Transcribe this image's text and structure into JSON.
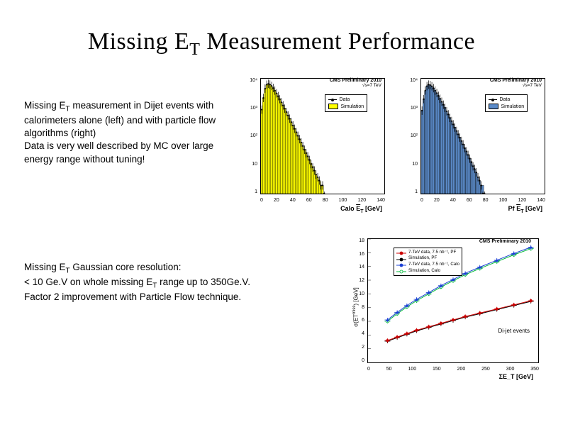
{
  "title_pre": "Missing E",
  "title_sub": "T",
  "title_post": " Measurement Performance",
  "desc1_lines": [
    "Missing E_T measurement in Dijet events with calorimeters alone (left) and with particle flow algorithms (right)",
    "Data is very well described by MC over large energy range without tuning!"
  ],
  "desc2_lines": [
    "Missing E_T Gaussian core resolution:",
    "< 10 Ge.V on whole missing E_T range up to 350Ge.V.",
    "Factor 2 improvement with Particle Flow technique."
  ],
  "chart_top_common": {
    "header_a": "CMS Preliminary 2010",
    "header_b": "√s=7 TeV",
    "ylabel": "Number of Events / 2 Ge.V",
    "legend_data": "Data",
    "legend_sim": "Simulation",
    "x_ticks": [
      "0",
      "20",
      "40",
      "60",
      "80",
      "100",
      "120",
      "140"
    ],
    "y_ticks_log": [
      "10⁴",
      "10³",
      "10²",
      "10",
      "1"
    ],
    "xmax": 150,
    "ylog_min": 0,
    "ylog_max": 4
  },
  "chart_a": {
    "xlabel": "Calo E_T [GeV]",
    "fill_color": "#ffff00",
    "hist": [
      [
        2,
        1200
      ],
      [
        4,
        3200
      ],
      [
        6,
        6800
      ],
      [
        8,
        9500
      ],
      [
        10,
        10400
      ],
      [
        12,
        9800
      ],
      [
        14,
        8700
      ],
      [
        16,
        7300
      ],
      [
        18,
        5900
      ],
      [
        20,
        4700
      ],
      [
        22,
        3700
      ],
      [
        24,
        2900
      ],
      [
        26,
        2200
      ],
      [
        28,
        1700
      ],
      [
        30,
        1300
      ],
      [
        32,
        980
      ],
      [
        34,
        740
      ],
      [
        36,
        560
      ],
      [
        38,
        420
      ],
      [
        40,
        320
      ],
      [
        42,
        240
      ],
      [
        44,
        180
      ],
      [
        46,
        135
      ],
      [
        48,
        100
      ],
      [
        50,
        76
      ],
      [
        52,
        57
      ],
      [
        54,
        42
      ],
      [
        56,
        32
      ],
      [
        58,
        24
      ],
      [
        60,
        18
      ],
      [
        62,
        13
      ],
      [
        64,
        10
      ],
      [
        66,
        7
      ],
      [
        68,
        5
      ],
      [
        70,
        4
      ],
      [
        72,
        3
      ],
      [
        74,
        2
      ],
      [
        76,
        2
      ],
      [
        78,
        1
      ],
      [
        94,
        1
      ],
      [
        102,
        1
      ]
    ],
    "data_pts": [
      [
        2,
        1180
      ],
      [
        4,
        3150
      ],
      [
        6,
        6900
      ],
      [
        8,
        9600
      ],
      [
        10,
        10300
      ],
      [
        12,
        9700
      ],
      [
        14,
        8650
      ],
      [
        16,
        7250
      ],
      [
        18,
        5850
      ],
      [
        20,
        4650
      ],
      [
        22,
        3650
      ],
      [
        24,
        2850
      ],
      [
        26,
        2180
      ],
      [
        28,
        1680
      ],
      [
        30,
        1280
      ],
      [
        32,
        960
      ],
      [
        34,
        720
      ],
      [
        36,
        550
      ],
      [
        38,
        410
      ],
      [
        40,
        310
      ],
      [
        42,
        235
      ],
      [
        44,
        175
      ],
      [
        46,
        130
      ],
      [
        48,
        98
      ],
      [
        50,
        74
      ],
      [
        52,
        55
      ],
      [
        54,
        40
      ],
      [
        56,
        30
      ],
      [
        58,
        23
      ],
      [
        60,
        17
      ],
      [
        62,
        12
      ],
      [
        64,
        9
      ],
      [
        66,
        7
      ],
      [
        68,
        5
      ],
      [
        70,
        4
      ],
      [
        72,
        3
      ],
      [
        74,
        2
      ],
      [
        76,
        2
      ],
      [
        78,
        1
      ]
    ]
  },
  "chart_b": {
    "xlabel": "Pf E_T [GeV]",
    "fill_color": "#5b8bc9",
    "hist": [
      [
        2,
        1100
      ],
      [
        4,
        2900
      ],
      [
        6,
        5800
      ],
      [
        8,
        8400
      ],
      [
        10,
        9700
      ],
      [
        12,
        9400
      ],
      [
        14,
        8500
      ],
      [
        16,
        7200
      ],
      [
        18,
        5900
      ],
      [
        20,
        4800
      ],
      [
        22,
        3800
      ],
      [
        24,
        3000
      ],
      [
        26,
        2300
      ],
      [
        28,
        1800
      ],
      [
        30,
        1400
      ],
      [
        32,
        1050
      ],
      [
        34,
        800
      ],
      [
        36,
        600
      ],
      [
        38,
        460
      ],
      [
        40,
        350
      ],
      [
        42,
        265
      ],
      [
        44,
        200
      ],
      [
        46,
        150
      ],
      [
        48,
        115
      ],
      [
        50,
        86
      ],
      [
        52,
        65
      ],
      [
        54,
        48
      ],
      [
        56,
        36
      ],
      [
        58,
        27
      ],
      [
        60,
        20
      ],
      [
        62,
        15
      ],
      [
        64,
        11
      ],
      [
        66,
        8
      ],
      [
        68,
        6
      ],
      [
        70,
        4
      ],
      [
        72,
        3
      ],
      [
        74,
        2
      ],
      [
        76,
        2
      ],
      [
        78,
        1
      ],
      [
        80,
        1
      ]
    ],
    "data_pts": [
      [
        2,
        1080
      ],
      [
        4,
        2850
      ],
      [
        6,
        5900
      ],
      [
        8,
        8500
      ],
      [
        10,
        9650
      ],
      [
        12,
        9300
      ],
      [
        14,
        8400
      ],
      [
        16,
        7150
      ],
      [
        18,
        5850
      ],
      [
        20,
        4750
      ],
      [
        22,
        3750
      ],
      [
        24,
        2950
      ],
      [
        26,
        2280
      ],
      [
        28,
        1780
      ],
      [
        30,
        1380
      ],
      [
        32,
        1030
      ],
      [
        34,
        790
      ],
      [
        36,
        590
      ],
      [
        38,
        450
      ],
      [
        40,
        340
      ],
      [
        42,
        260
      ],
      [
        44,
        195
      ],
      [
        46,
        148
      ],
      [
        48,
        112
      ],
      [
        50,
        84
      ],
      [
        52,
        63
      ],
      [
        54,
        46
      ],
      [
        56,
        35
      ],
      [
        58,
        26
      ],
      [
        60,
        19
      ],
      [
        62,
        14
      ],
      [
        64,
        10
      ],
      [
        66,
        8
      ],
      [
        68,
        6
      ],
      [
        70,
        4
      ],
      [
        72,
        3
      ],
      [
        74,
        2
      ],
      [
        76,
        1
      ],
      [
        78,
        1
      ]
    ]
  },
  "chart_c": {
    "header_a": "CMS Preliminary 2010",
    "ylabel": "σ(E_T^miss) [GeV]",
    "xlabel": "ΣE_T [GeV]",
    "x_ticks": [
      "0",
      "50",
      "100",
      "150",
      "200",
      "250",
      "300",
      "350"
    ],
    "y_ticks": [
      "18",
      "16",
      "14",
      "12",
      "10",
      "8",
      "6",
      "4",
      "2",
      "0"
    ],
    "ymax": 18,
    "xmax": 350,
    "annotation": "Di-jet events",
    "legend": [
      {
        "label": "7-TeV data, 7.5 nb⁻¹, PF",
        "color": "#cc0000",
        "marker": "circle"
      },
      {
        "label": "Simulation, PF",
        "color": "#000000",
        "marker": "star"
      },
      {
        "label": "7-TeV data, 7.5 nb⁻¹, Calo",
        "color": "#1a3fd6",
        "marker": "triangle"
      },
      {
        "label": "Simulation, Calo",
        "color": "#00b838",
        "marker": "opencircle"
      }
    ],
    "series_pf_data": {
      "color": "#cc0000",
      "pts": [
        [
          40,
          3.2
        ],
        [
          60,
          3.7
        ],
        [
          80,
          4.2
        ],
        [
          100,
          4.7
        ],
        [
          125,
          5.2
        ],
        [
          150,
          5.7
        ],
        [
          175,
          6.2
        ],
        [
          200,
          6.7
        ],
        [
          230,
          7.2
        ],
        [
          265,
          7.8
        ],
        [
          300,
          8.4
        ],
        [
          335,
          9.0
        ]
      ]
    },
    "series_pf_sim": {
      "color": "#000000",
      "pts": [
        [
          40,
          3.1
        ],
        [
          60,
          3.6
        ],
        [
          80,
          4.1
        ],
        [
          100,
          4.6
        ],
        [
          125,
          5.1
        ],
        [
          150,
          5.6
        ],
        [
          175,
          6.1
        ],
        [
          200,
          6.6
        ],
        [
          230,
          7.1
        ],
        [
          265,
          7.7
        ],
        [
          300,
          8.3
        ],
        [
          335,
          8.9
        ]
      ]
    },
    "series_calo_data": {
      "color": "#1a3fd6",
      "pts": [
        [
          40,
          6.2
        ],
        [
          60,
          7.3
        ],
        [
          80,
          8.3
        ],
        [
          100,
          9.2
        ],
        [
          125,
          10.2
        ],
        [
          150,
          11.2
        ],
        [
          175,
          12.1
        ],
        [
          200,
          13.0
        ],
        [
          230,
          13.9
        ],
        [
          265,
          14.9
        ],
        [
          300,
          15.9
        ],
        [
          335,
          16.8
        ]
      ]
    },
    "series_calo_sim": {
      "color": "#00b838",
      "pts": [
        [
          40,
          6.0
        ],
        [
          60,
          7.1
        ],
        [
          80,
          8.1
        ],
        [
          100,
          9.0
        ],
        [
          125,
          10.0
        ],
        [
          150,
          11.0
        ],
        [
          175,
          11.9
        ],
        [
          200,
          12.8
        ],
        [
          230,
          13.7
        ],
        [
          265,
          14.7
        ],
        [
          300,
          15.7
        ],
        [
          335,
          16.6
        ]
      ]
    }
  }
}
